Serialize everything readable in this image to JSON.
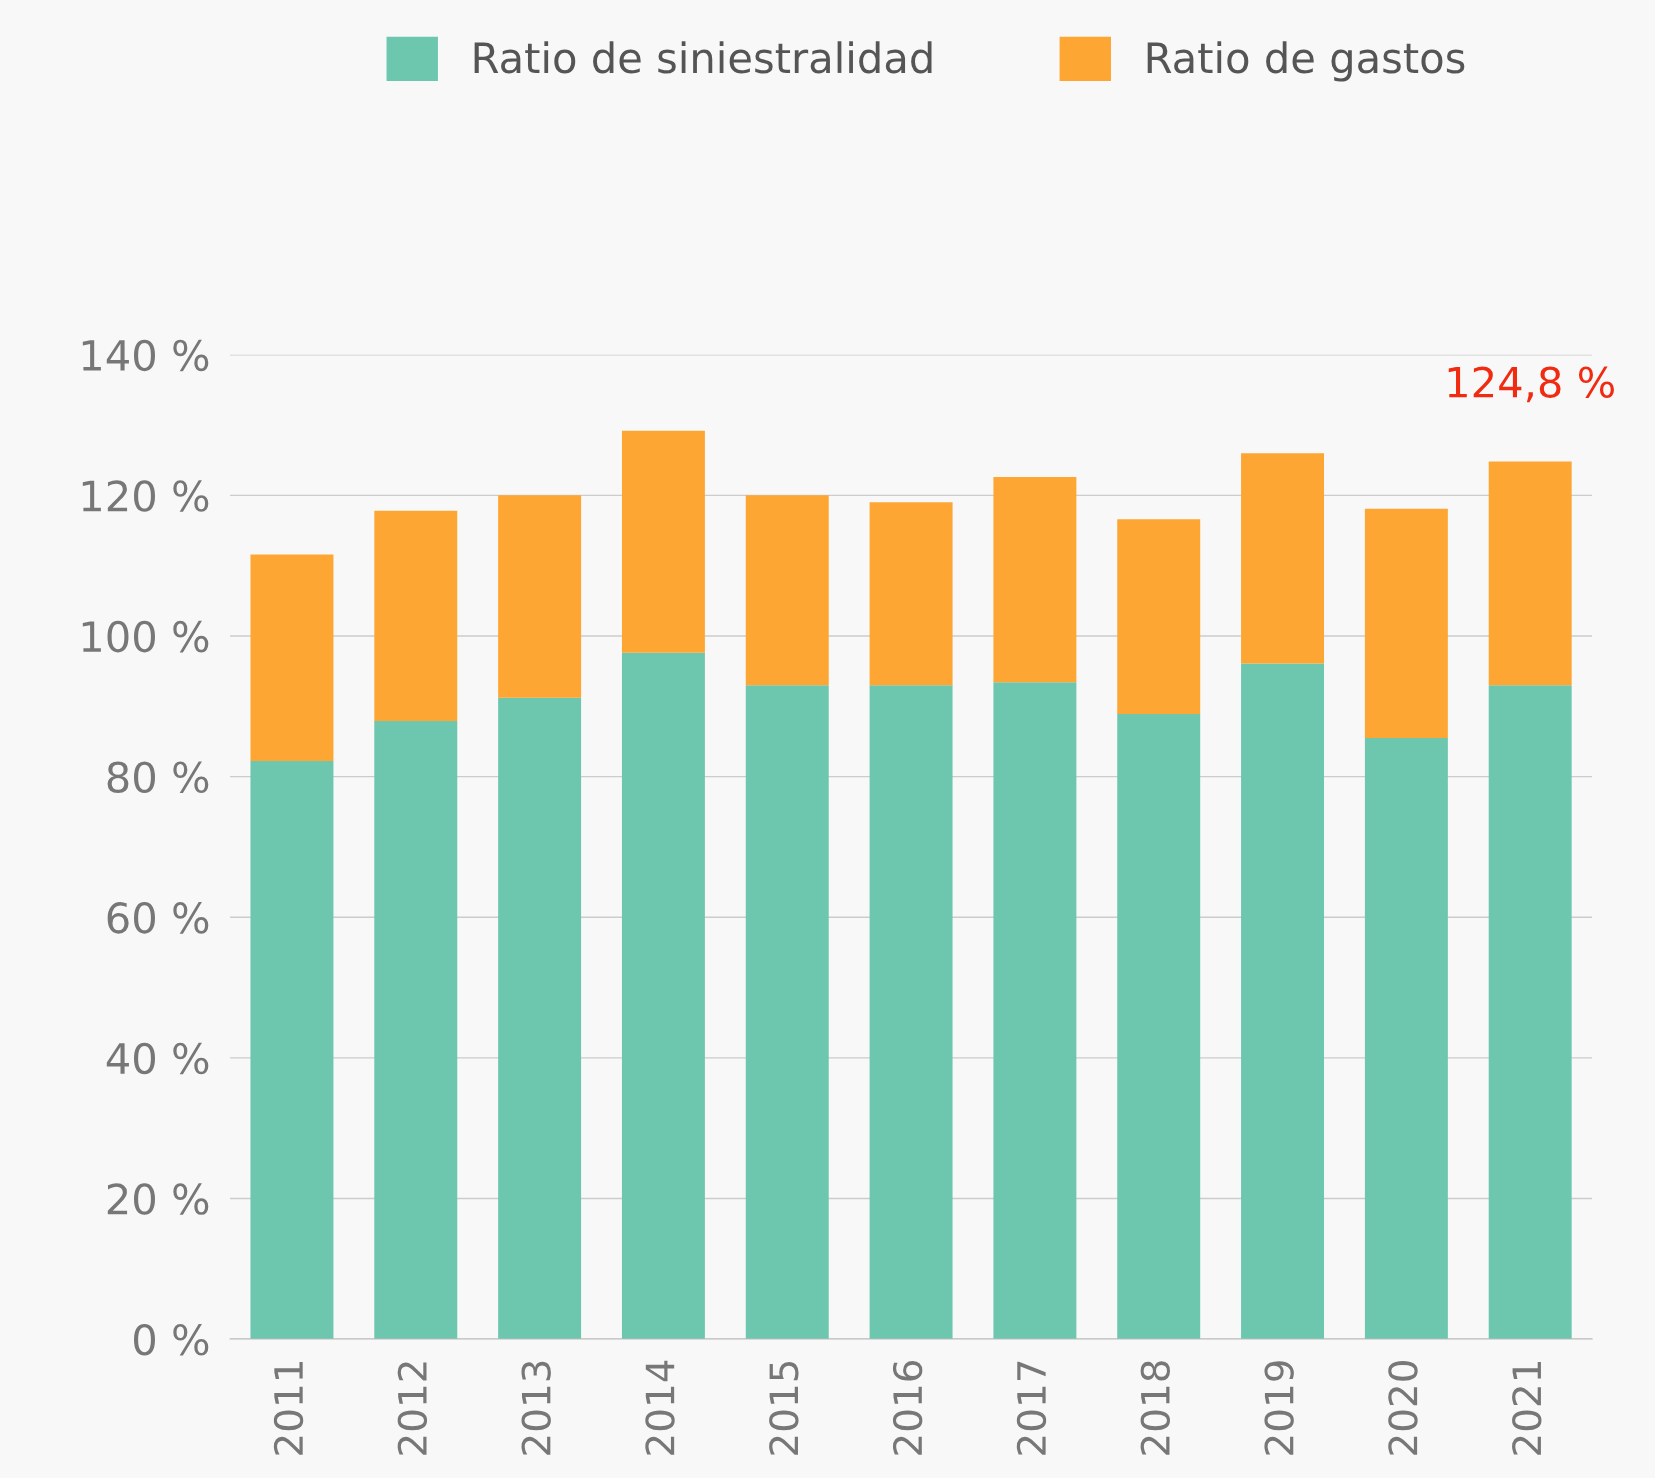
{
  "chart_data": {
    "type": "bar",
    "stacked": true,
    "categories": [
      "2011",
      "2012",
      "2013",
      "2014",
      "2015",
      "2016",
      "2017",
      "2018",
      "2019",
      "2020",
      "2021"
    ],
    "series": [
      {
        "name": "Ratio de siniestralidad",
        "color": "#6cc7ae",
        "values": [
          82.2,
          87.9,
          91.2,
          97.6,
          93.0,
          93.0,
          93.4,
          88.9,
          96.1,
          85.5,
          93.0
        ]
      },
      {
        "name": "Ratio de gastos",
        "color": "#fda633",
        "values": [
          29.4,
          29.9,
          28.8,
          31.6,
          27.0,
          26.0,
          29.2,
          27.7,
          29.9,
          32.6,
          31.8
        ]
      }
    ],
    "ylim": [
      0,
      140
    ],
    "yticks": [
      {
        "value": 0,
        "label": "0 %"
      },
      {
        "value": 20,
        "label": "20 %"
      },
      {
        "value": 40,
        "label": "40 %"
      },
      {
        "value": 60,
        "label": "60 %"
      },
      {
        "value": 80,
        "label": "80 %"
      },
      {
        "value": 100,
        "label": "100 %"
      },
      {
        "value": 120,
        "label": "120 %"
      },
      {
        "value": 140,
        "label": "140 %"
      }
    ],
    "grid": "y",
    "legend": "top",
    "annotations": [
      {
        "text": "124,8 %",
        "x": "2021",
        "y": 124.8
      }
    ]
  }
}
